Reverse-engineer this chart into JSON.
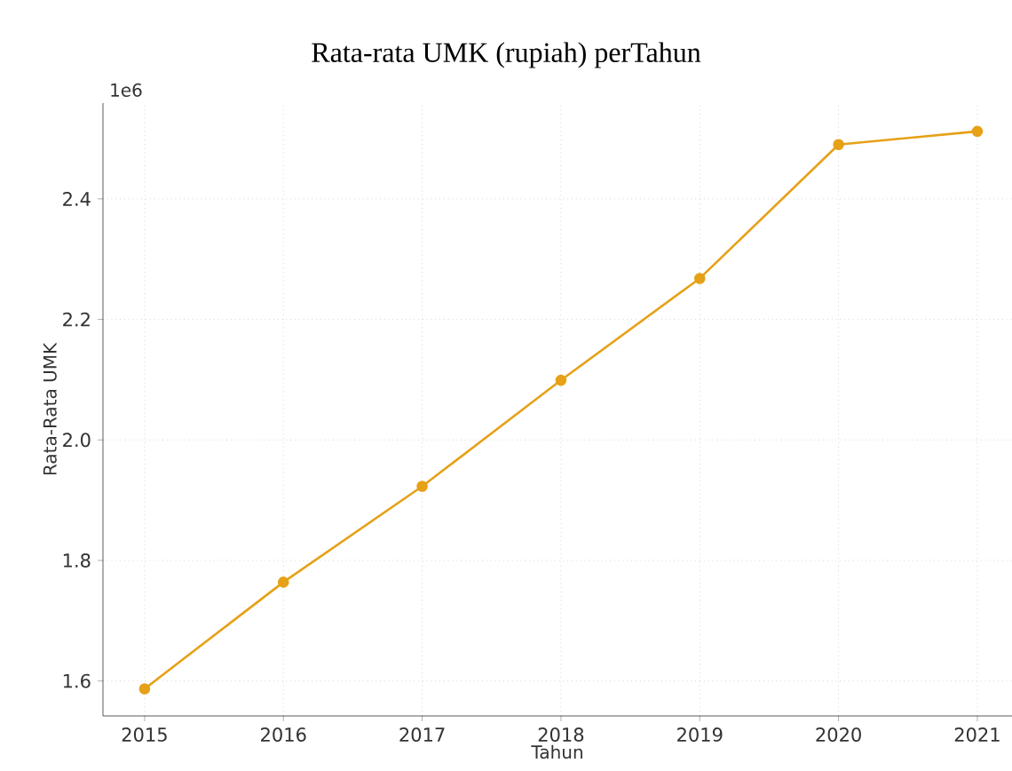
{
  "chart_data": {
    "type": "line",
    "title": "Rata-rata UMK (rupiah) perTahun",
    "xlabel": "Tahun",
    "ylabel": "Rata-Rata UMK",
    "x": [
      2015,
      2016,
      2017,
      2018,
      2019,
      2020,
      2021
    ],
    "series": [
      {
        "color": "#e6a117",
        "values": [
          1.587,
          1.764,
          1.923,
          2.099,
          2.268,
          2.49,
          2.512
        ]
      }
    ],
    "xlim": [
      2014.7,
      2021.25
    ],
    "xticks": [
      2015,
      2016,
      2017,
      2018,
      2019,
      2020,
      2021
    ],
    "ylim": [
      1.542,
      2.559
    ],
    "yticks": [
      1.6,
      1.8,
      {
        "value": 2,
        "label": "2.0"
      },
      2.2,
      2.4
    ],
    "annotations": [
      "1e6"
    ],
    "grid": true,
    "marker": "circle",
    "line_style": "solid"
  }
}
